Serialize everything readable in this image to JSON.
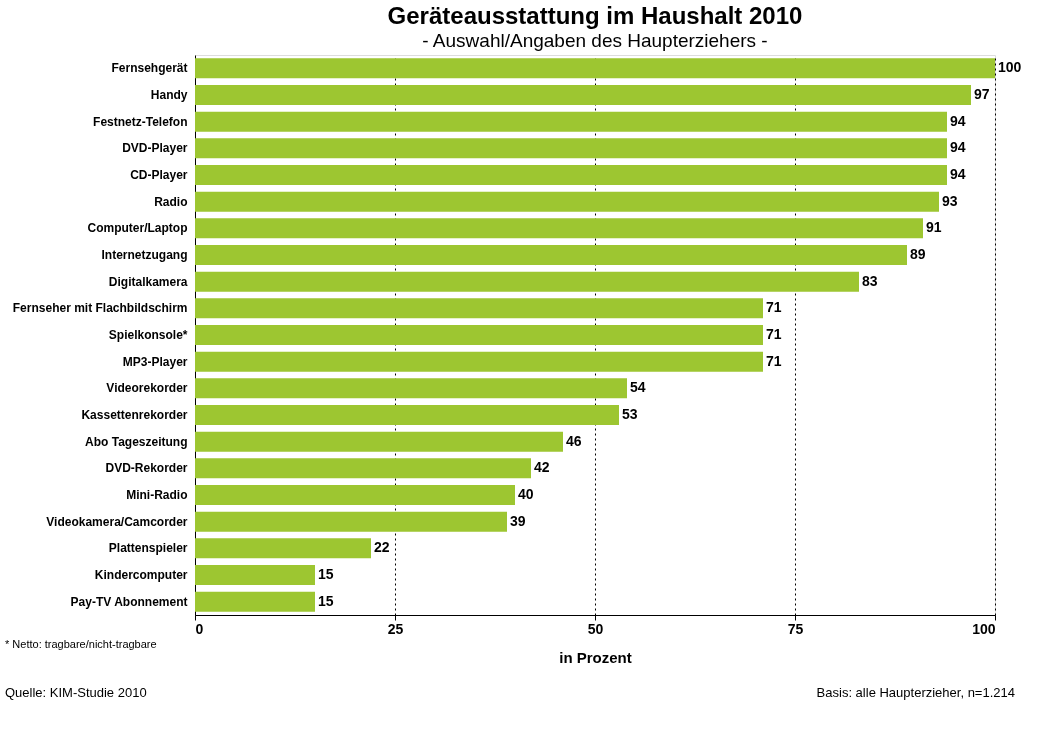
{
  "chart_data": {
    "type": "bar",
    "orientation": "horizontal",
    "title": "Geräteausstattung im Haushalt 2010",
    "subtitle": "- Auswahl/Angaben des Haupterziehers -",
    "categories": [
      "Fernsehgerät",
      "Handy",
      "Festnetz-Telefon",
      "DVD-Player",
      "CD-Player",
      "Radio",
      "Computer/Laptop",
      "Internetzugang",
      "Digitalkamera",
      "Fernseher mit Flachbildschirm",
      "Spielkonsole*",
      "MP3-Player",
      "Videorekorder",
      "Kassettenrekorder",
      "Abo Tageszeitung",
      "DVD-Rekorder",
      "Mini-Radio",
      "Videokamera/Camcorder",
      "Plattenspieler",
      "Kindercomputer",
      "Pay-TV Abonnement"
    ],
    "values": [
      100,
      97,
      94,
      94,
      94,
      93,
      91,
      89,
      83,
      71,
      71,
      71,
      54,
      53,
      46,
      42,
      40,
      39,
      22,
      15,
      15
    ],
    "color": "#9dc631",
    "xlim": [
      0,
      100
    ],
    "xticks": [
      0,
      25,
      50,
      75,
      100
    ],
    "grid": "x",
    "data_labels": true,
    "xlabel": "in Prozent",
    "annotations": [
      "* Netto: tragbare/nicht-tragbare",
      "Quelle: KIM-Studie 2010",
      "Basis: alle Haupterzieher,  n=1.214"
    ]
  }
}
